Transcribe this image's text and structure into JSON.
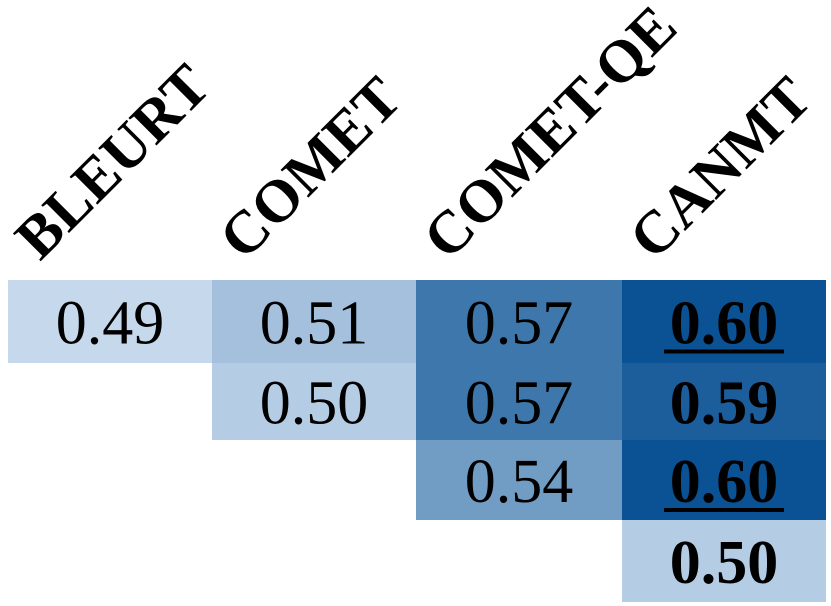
{
  "chart_data": {
    "type": "heatmap",
    "columns": [
      "BLEURT",
      "COMET",
      "COMET-QE",
      "CANMT"
    ],
    "rows": [
      {
        "cells": [
          {
            "col": 0,
            "label": "0.49",
            "value": 0.49,
            "bold": false,
            "underline": false
          },
          {
            "col": 1,
            "label": "0.51",
            "value": 0.51,
            "bold": false,
            "underline": false
          },
          {
            "col": 2,
            "label": "0.57",
            "value": 0.57,
            "bold": false,
            "underline": false
          },
          {
            "col": 3,
            "label": "0.60",
            "value": 0.6,
            "bold": true,
            "underline": true
          }
        ]
      },
      {
        "cells": [
          {
            "col": 1,
            "label": "0.50",
            "value": 0.5,
            "bold": false,
            "underline": false
          },
          {
            "col": 2,
            "label": "0.57",
            "value": 0.57,
            "bold": false,
            "underline": false
          },
          {
            "col": 3,
            "label": "0.59",
            "value": 0.59,
            "bold": true,
            "underline": false
          }
        ]
      },
      {
        "cells": [
          {
            "col": 2,
            "label": "0.54",
            "value": 0.54,
            "bold": false,
            "underline": false
          },
          {
            "col": 3,
            "label": "0.60",
            "value": 0.6,
            "bold": true,
            "underline": true
          }
        ]
      },
      {
        "cells": [
          {
            "col": 3,
            "label": "0.50",
            "value": 0.5,
            "bold": true,
            "underline": false
          }
        ]
      }
    ],
    "colormap": "Blues",
    "color_low": "#c6d9ec",
    "color_high": "#0b5294",
    "value_range": [
      0.49,
      0.6
    ],
    "legend": "none",
    "grid": false
  }
}
